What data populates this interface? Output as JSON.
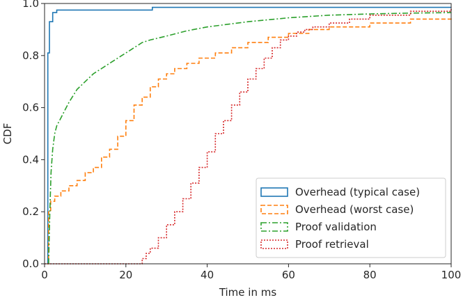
{
  "chart_data": {
    "type": "line",
    "title": "",
    "xlabel": "Time in ms",
    "ylabel": "CDF",
    "xlim": [
      0,
      100
    ],
    "ylim": [
      0,
      1.0
    ],
    "x_ticks": [
      0,
      20,
      40,
      60,
      80,
      100
    ],
    "y_ticks": [
      0.0,
      0.2,
      0.4,
      0.6,
      0.8,
      1.0
    ],
    "x_tick_labels": [
      "0",
      "20",
      "40",
      "60",
      "80",
      "100"
    ],
    "y_tick_labels": [
      "0.0",
      "0.2",
      "0.4",
      "0.6",
      "0.8",
      "1.0"
    ],
    "grid": false,
    "legend_position": "lower-right",
    "series": [
      {
        "name": "Overhead (typical case)",
        "color": "#1f77b4",
        "style": "solid",
        "step": true,
        "x": [
          0.8,
          0.8,
          1.2,
          1.5,
          2.0,
          3.0,
          4.0,
          26,
          26.5,
          100
        ],
        "y": [
          0.0,
          0.81,
          0.93,
          0.93,
          0.965,
          0.975,
          0.975,
          0.975,
          0.985,
          0.985
        ]
      },
      {
        "name": "Overhead (worst case)",
        "color": "#ff7f0e",
        "style": "dashed",
        "step": true,
        "x": [
          0.6,
          1.0,
          1.5,
          2.5,
          4,
          6,
          8,
          10,
          12,
          14,
          16,
          18,
          20,
          22,
          24,
          26,
          28,
          30,
          32,
          35,
          38,
          42,
          46,
          50,
          55,
          60,
          65,
          70,
          80,
          90,
          100
        ],
        "y": [
          0.0,
          0.2,
          0.24,
          0.26,
          0.28,
          0.3,
          0.32,
          0.35,
          0.37,
          0.41,
          0.44,
          0.49,
          0.55,
          0.61,
          0.64,
          0.68,
          0.71,
          0.73,
          0.75,
          0.77,
          0.79,
          0.81,
          0.83,
          0.85,
          0.87,
          0.885,
          0.9,
          0.91,
          0.925,
          0.94,
          0.95
        ]
      },
      {
        "name": "Proof validation",
        "color": "#2ca02c",
        "style": "dashdot",
        "step": false,
        "x": [
          1.0,
          1.3,
          1.6,
          2.0,
          2.5,
          3,
          4,
          5,
          6,
          8,
          10,
          12,
          14,
          16,
          18,
          20,
          22,
          24,
          26,
          30,
          35,
          40,
          50,
          60,
          70,
          80,
          90,
          100
        ],
        "y": [
          0.0,
          0.2,
          0.35,
          0.44,
          0.5,
          0.53,
          0.56,
          0.59,
          0.62,
          0.67,
          0.7,
          0.73,
          0.75,
          0.77,
          0.79,
          0.81,
          0.83,
          0.85,
          0.86,
          0.875,
          0.895,
          0.91,
          0.93,
          0.945,
          0.955,
          0.96,
          0.963,
          0.965
        ]
      },
      {
        "name": "Proof retrieval",
        "color": "#d62728",
        "style": "dotted",
        "step": true,
        "x": [
          0,
          23,
          24,
          25,
          26,
          28,
          30,
          32,
          34,
          36,
          38,
          40,
          42,
          44,
          46,
          48,
          50,
          52,
          54,
          56,
          58,
          60,
          62,
          64,
          66,
          70,
          75,
          80,
          90,
          100
        ],
        "y": [
          0.0,
          0.0,
          0.02,
          0.04,
          0.06,
          0.1,
          0.15,
          0.2,
          0.25,
          0.31,
          0.37,
          0.43,
          0.5,
          0.55,
          0.61,
          0.66,
          0.71,
          0.75,
          0.79,
          0.83,
          0.86,
          0.875,
          0.89,
          0.9,
          0.91,
          0.925,
          0.94,
          0.955,
          0.97,
          0.985
        ]
      }
    ]
  }
}
